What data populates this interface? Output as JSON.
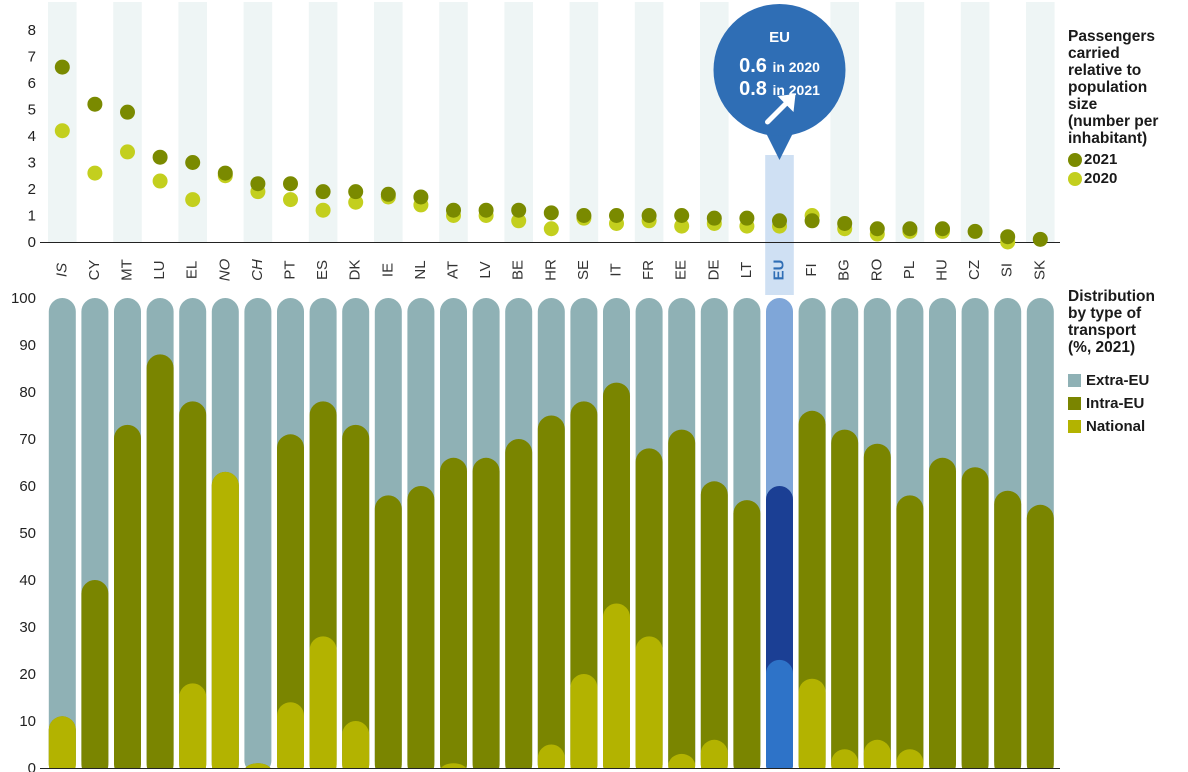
{
  "top_legend": {
    "title": "Passengers carried relative to population size (number per inhabitant)",
    "title_lines": [
      "Passengers",
      "carried",
      "relative to",
      "population",
      "size",
      "(number per",
      "inhabitant)"
    ],
    "series_2021": "2021",
    "series_2020": "2020"
  },
  "bottom_legend": {
    "title": "Distribution by type of transport (%, 2021)",
    "title_lines": [
      "Distribution",
      "by type of",
      "transport",
      "(%, 2021)"
    ],
    "items": [
      "Extra-EU",
      "Intra-EU",
      "National"
    ]
  },
  "callout": {
    "label": "EU",
    "line_2020_value": "0.6",
    "line_2020_suffix": "in 2020",
    "line_2021_value": "0.8",
    "line_2021_suffix": "in 2021"
  },
  "colors": {
    "dot_2021": "#7a8a00",
    "dot_2020": "#c3cf1e",
    "extra_eu": "#8fb1b5",
    "intra_eu": "#7a8500",
    "national": "#b3b300",
    "eu_extra": "#7fa6d8",
    "eu_intra": "#1b3f94",
    "eu_national": "#2e73c8",
    "callout_bg": "#2f6eb5",
    "stripe": "#eef5f5"
  },
  "chart_data": [
    {
      "type": "scatter",
      "categories": [
        "IS",
        "CY",
        "MT",
        "LU",
        "EL",
        "NO",
        "CH",
        "PT",
        "ES",
        "DK",
        "IE",
        "NL",
        "AT",
        "LV",
        "BE",
        "HR",
        "SE",
        "IT",
        "FR",
        "EE",
        "DE",
        "LT",
        "EU",
        "FI",
        "BG",
        "RO",
        "PL",
        "HU",
        "CZ",
        "SI",
        "SK"
      ],
      "italic_categories": [
        "IS",
        "NO",
        "CH"
      ],
      "highlight_category": "EU",
      "series": [
        {
          "name": "2021",
          "values": [
            6.6,
            5.2,
            4.9,
            3.2,
            3.0,
            2.6,
            2.2,
            2.2,
            1.9,
            1.9,
            1.8,
            1.7,
            1.2,
            1.2,
            1.2,
            1.1,
            1.0,
            1.0,
            1.0,
            1.0,
            0.9,
            0.9,
            0.8,
            0.8,
            0.7,
            0.5,
            0.5,
            0.5,
            0.4,
            0.2,
            0.1
          ]
        },
        {
          "name": "2020",
          "values": [
            4.2,
            2.6,
            3.4,
            2.3,
            1.6,
            2.5,
            1.9,
            1.6,
            1.2,
            1.5,
            1.7,
            1.4,
            1.0,
            1.0,
            0.8,
            0.5,
            0.9,
            0.7,
            0.8,
            0.6,
            0.7,
            0.6,
            0.6,
            1.0,
            0.5,
            0.3,
            0.4,
            0.4,
            null,
            0.0,
            null
          ]
        }
      ],
      "ylim": [
        0,
        8
      ],
      "yticks": [
        0,
        1,
        2,
        3,
        4,
        5,
        6,
        7,
        8
      ]
    },
    {
      "type": "bar",
      "stacked": true,
      "categories": [
        "IS",
        "CY",
        "MT",
        "LU",
        "EL",
        "NO",
        "CH",
        "PT",
        "ES",
        "DK",
        "IE",
        "NL",
        "AT",
        "LV",
        "BE",
        "HR",
        "SE",
        "IT",
        "FR",
        "EE",
        "DE",
        "LT",
        "EU",
        "FI",
        "BG",
        "RO",
        "PL",
        "HU",
        "CZ",
        "SI",
        "SK"
      ],
      "series": [
        {
          "name": "National",
          "values": [
            11,
            0,
            0,
            0,
            18,
            63,
            1,
            14,
            28,
            10,
            0,
            0,
            1,
            0,
            0,
            5,
            20,
            35,
            28,
            3,
            6,
            0,
            23,
            19,
            4,
            6,
            4,
            0,
            0,
            0,
            0
          ]
        },
        {
          "name": "Intra-EU",
          "values": [
            0,
            40,
            73,
            88,
            60,
            0,
            0,
            57,
            50,
            63,
            58,
            60,
            65,
            66,
            70,
            70,
            58,
            47,
            40,
            69,
            55,
            57,
            37,
            57,
            68,
            63,
            54,
            66,
            64,
            59,
            56
          ]
        },
        {
          "name": "Extra-EU",
          "values": [
            89,
            60,
            27,
            12,
            22,
            37,
            99,
            29,
            22,
            27,
            42,
            40,
            34,
            34,
            30,
            25,
            22,
            18,
            32,
            28,
            39,
            43,
            40,
            24,
            28,
            31,
            42,
            34,
            36,
            41,
            44
          ]
        }
      ],
      "ylim": [
        0,
        100
      ],
      "yticks": [
        0,
        10,
        20,
        30,
        40,
        50,
        60,
        70,
        80,
        90,
        100
      ]
    }
  ]
}
